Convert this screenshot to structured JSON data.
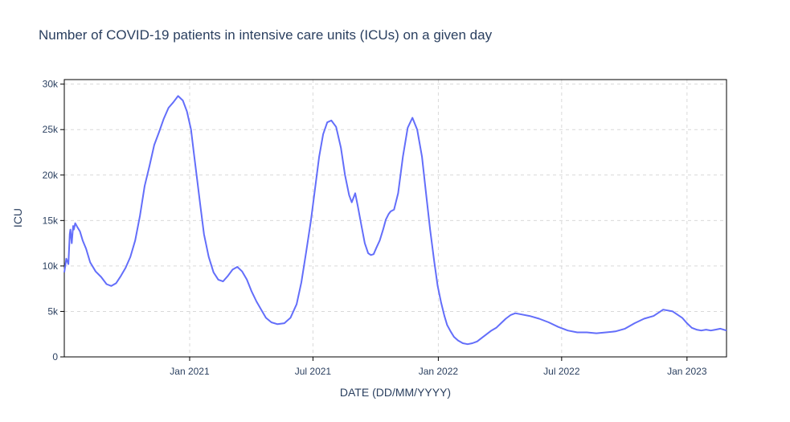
{
  "title": "Number of COVID-19 patients in intensive care units (ICUs) on a given day",
  "chart_data": {
    "type": "line",
    "title": "Number of COVID-19 patients in intensive care units (ICUs) on a given day",
    "xlabel": "DATE (DD/MM/YYYY)",
    "ylabel": "ICU",
    "xlim": [
      "2020-07-01",
      "2023-02-28"
    ],
    "ylim": [
      0,
      30500
    ],
    "grid": true,
    "legend": "none",
    "line_color": "#636efa",
    "y_ticks": [
      0,
      5000,
      10000,
      15000,
      20000,
      25000,
      30000
    ],
    "y_tick_labels": [
      "0",
      "5k",
      "10k",
      "15k",
      "20k",
      "25k",
      "30k"
    ],
    "x_ticks": [
      "2021-01-01",
      "2021-07-01",
      "2022-01-01",
      "2022-07-01",
      "2023-01-01"
    ],
    "x_tick_labels": [
      "Jan 2021",
      "Jul 2021",
      "Jan 2022",
      "Jul 2022",
      "Jan 2023"
    ],
    "series": [
      {
        "x": [
          "2020-07-01",
          "2020-07-04",
          "2020-07-07",
          "2020-07-09",
          "2020-07-10",
          "2020-07-12",
          "2020-07-14",
          "2020-07-15",
          "2020-07-17",
          "2020-07-20",
          "2020-07-24",
          "2020-07-28",
          "2020-08-02",
          "2020-08-08",
          "2020-08-16",
          "2020-08-24",
          "2020-09-01",
          "2020-09-08",
          "2020-09-15",
          "2020-09-22",
          "2020-09-29",
          "2020-10-06",
          "2020-10-13",
          "2020-10-20",
          "2020-10-27",
          "2020-11-03",
          "2020-11-10",
          "2020-11-17",
          "2020-11-24",
          "2020-12-01",
          "2020-12-08",
          "2020-12-15",
          "2020-12-22",
          "2020-12-28",
          "2021-01-03",
          "2021-01-07",
          "2021-01-12",
          "2021-01-17",
          "2021-01-22",
          "2021-01-29",
          "2021-02-05",
          "2021-02-12",
          "2021-02-19",
          "2021-02-26",
          "2021-03-05",
          "2021-03-12",
          "2021-03-19",
          "2021-03-26",
          "2021-04-02",
          "2021-04-09",
          "2021-04-16",
          "2021-04-23",
          "2021-05-01",
          "2021-05-10",
          "2021-05-20",
          "2021-05-29",
          "2021-06-07",
          "2021-06-14",
          "2021-06-21",
          "2021-06-28",
          "2021-07-04",
          "2021-07-10",
          "2021-07-16",
          "2021-07-22",
          "2021-07-28",
          "2021-08-04",
          "2021-08-11",
          "2021-08-17",
          "2021-08-23",
          "2021-08-27",
          "2021-09-01",
          "2021-09-05",
          "2021-09-10",
          "2021-09-15",
          "2021-09-20",
          "2021-09-24",
          "2021-09-28",
          "2021-10-02",
          "2021-10-07",
          "2021-10-12",
          "2021-10-16",
          "2021-10-20",
          "2021-10-23",
          "2021-10-28",
          "2021-11-03",
          "2021-11-10",
          "2021-11-17",
          "2021-11-24",
          "2021-12-01",
          "2021-12-08",
          "2021-12-14",
          "2021-12-20",
          "2021-12-26",
          "2021-12-31",
          "2022-01-05",
          "2022-01-10",
          "2022-01-14",
          "2022-01-19",
          "2022-01-24",
          "2022-01-30",
          "2022-02-06",
          "2022-02-13",
          "2022-02-20",
          "2022-02-27",
          "2022-03-06",
          "2022-03-13",
          "2022-03-20",
          "2022-03-27",
          "2022-04-03",
          "2022-04-10",
          "2022-04-17",
          "2022-04-24",
          "2022-05-01",
          "2022-05-15",
          "2022-05-29",
          "2022-06-12",
          "2022-06-26",
          "2022-07-10",
          "2022-07-24",
          "2022-08-07",
          "2022-08-21",
          "2022-09-04",
          "2022-09-18",
          "2022-10-02",
          "2022-10-16",
          "2022-10-30",
          "2022-11-13",
          "2022-11-27",
          "2022-12-11",
          "2022-12-25",
          "2023-01-01",
          "2023-01-08",
          "2023-01-15",
          "2023-01-22",
          "2023-01-29",
          "2023-02-05",
          "2023-02-12",
          "2023-02-19",
          "2023-02-28"
        ],
        "y": [
          9300,
          10800,
          10200,
          13500,
          14000,
          12500,
          14400,
          14000,
          14700,
          14300,
          13800,
          12800,
          11900,
          10400,
          9400,
          8800,
          8000,
          7800,
          8100,
          8900,
          9800,
          11000,
          12800,
          15500,
          18800,
          21000,
          23300,
          24700,
          26200,
          27400,
          28000,
          28700,
          28200,
          27000,
          25000,
          22500,
          19500,
          16500,
          13500,
          11000,
          9300,
          8500,
          8300,
          8900,
          9600,
          9900,
          9400,
          8500,
          7200,
          6100,
          5200,
          4300,
          3800,
          3600,
          3700,
          4300,
          5800,
          8200,
          11500,
          15000,
          18500,
          22000,
          24500,
          25800,
          26000,
          25300,
          23000,
          20000,
          17800,
          17000,
          18000,
          16500,
          14500,
          12500,
          11400,
          11200,
          11300,
          12000,
          12800,
          14000,
          15100,
          15700,
          16000,
          16200,
          18000,
          22000,
          25200,
          26300,
          25000,
          22000,
          18000,
          14000,
          10500,
          7800,
          6000,
          4500,
          3500,
          2800,
          2200,
          1800,
          1500,
          1400,
          1500,
          1700,
          2100,
          2500,
          2900,
          3200,
          3700,
          4200,
          4600,
          4800,
          4700,
          4500,
          4200,
          3800,
          3300,
          2900,
          2700,
          2700,
          2600,
          2700,
          2800,
          3100,
          3700,
          4200,
          4500,
          5200,
          5000,
          4300,
          3700,
          3200,
          3000,
          2900,
          3000,
          2900,
          3000,
          3100,
          2900
        ]
      }
    ]
  }
}
